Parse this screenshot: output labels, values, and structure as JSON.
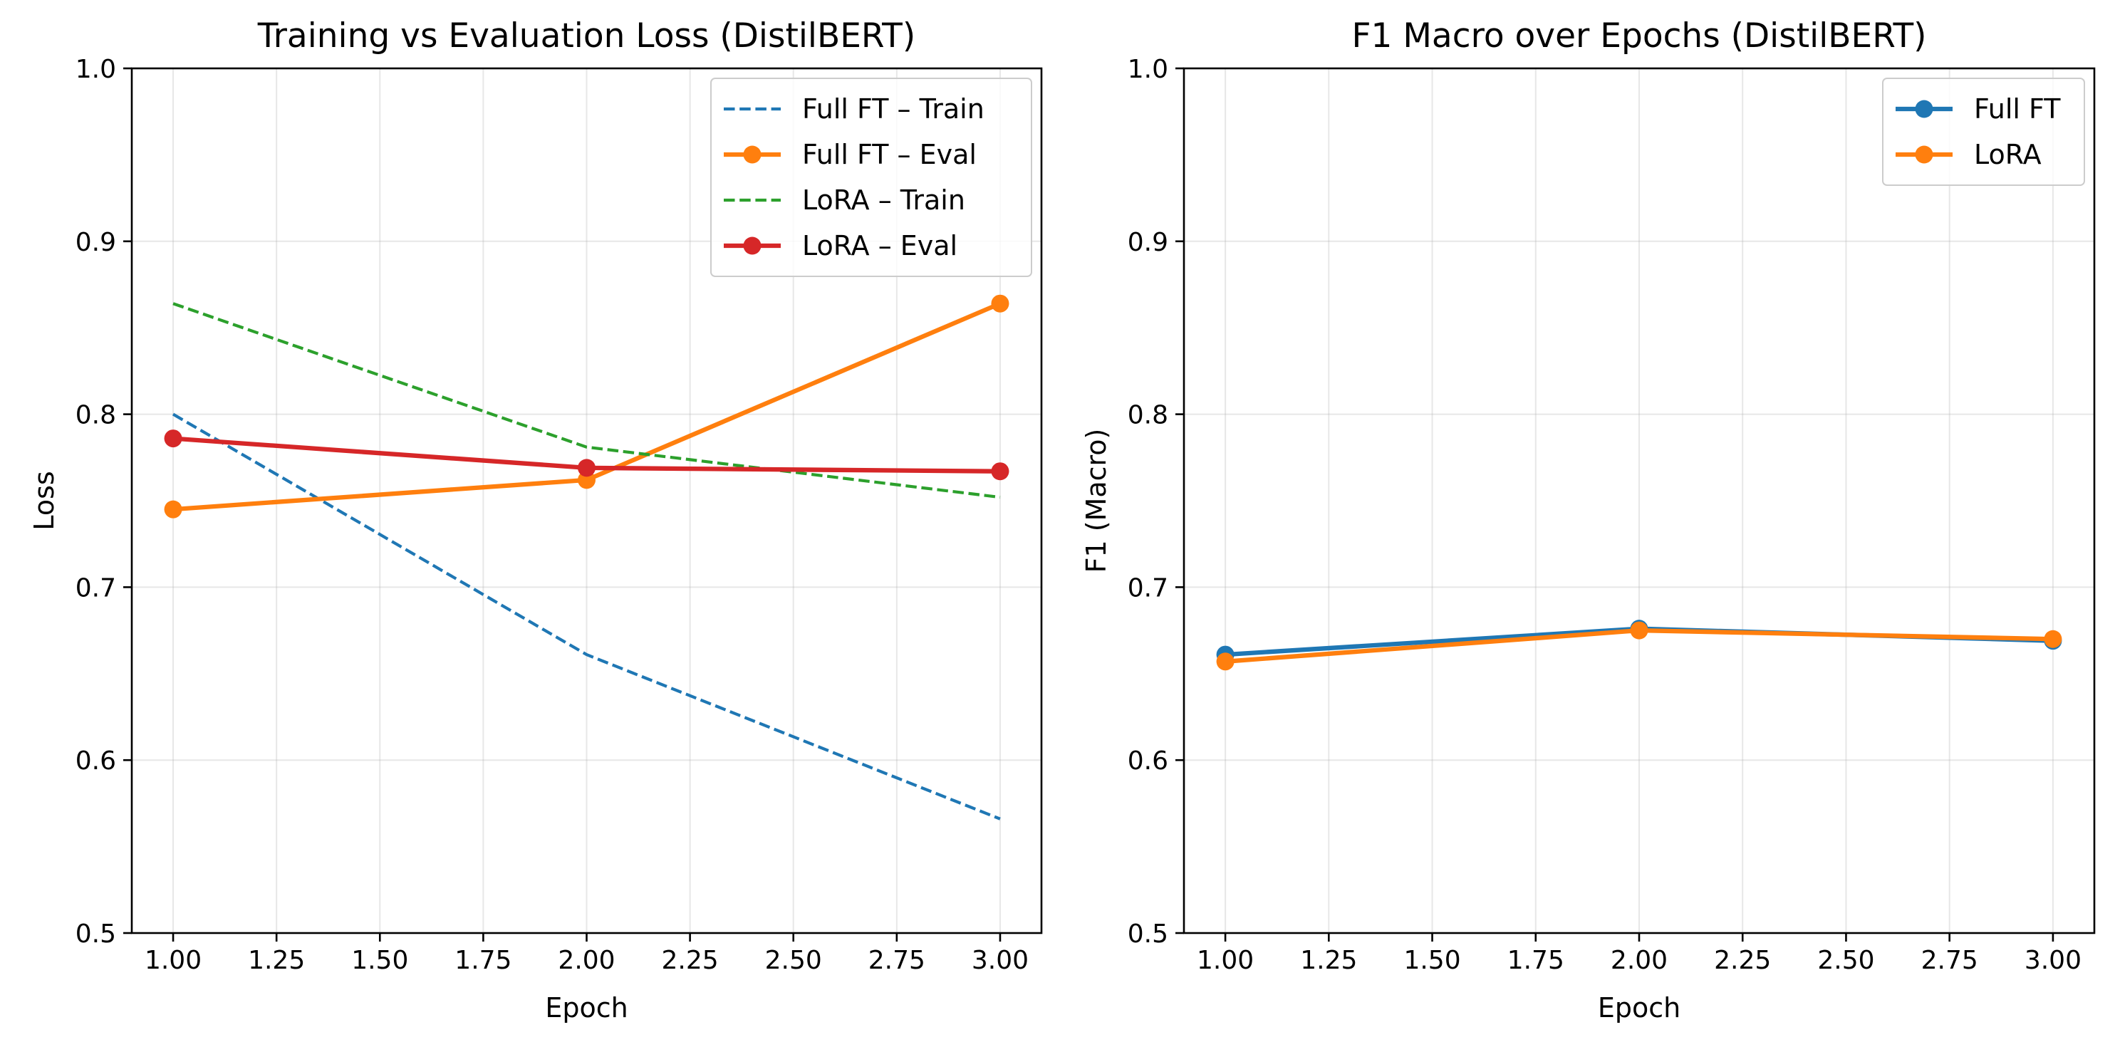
{
  "chart_data": [
    {
      "type": "line",
      "title": "Training vs Evaluation Loss (DistilBERT)",
      "xlabel": "Epoch",
      "ylabel": "Loss",
      "xlim": [
        0.9,
        3.1
      ],
      "ylim": [
        0.5,
        1.0
      ],
      "xticks": [
        1.0,
        1.25,
        1.5,
        1.75,
        2.0,
        2.25,
        2.5,
        2.75,
        3.0
      ],
      "xtick_labels": [
        "1.00",
        "1.25",
        "1.50",
        "1.75",
        "2.00",
        "2.25",
        "2.50",
        "2.75",
        "3.00"
      ],
      "yticks": [
        0.5,
        0.6,
        0.7,
        0.8,
        0.9,
        1.0
      ],
      "ytick_labels": [
        "0.5",
        "0.6",
        "0.7",
        "0.8",
        "0.9",
        "1.0"
      ],
      "grid": true,
      "legend_position": "top-right",
      "x": [
        1,
        2,
        3
      ],
      "series": [
        {
          "name": "Full FT – Train",
          "values": [
            0.8,
            0.661,
            0.566
          ],
          "color": "#1f77b4",
          "style": "dashed",
          "marker": false
        },
        {
          "name": "Full FT – Eval",
          "values": [
            0.745,
            0.762,
            0.864
          ],
          "color": "#ff7f0e",
          "style": "solid",
          "marker": true
        },
        {
          "name": "LoRA – Train",
          "values": [
            0.864,
            0.781,
            0.752
          ],
          "color": "#2ca02c",
          "style": "dashed",
          "marker": false
        },
        {
          "name": "LoRA – Eval",
          "values": [
            0.786,
            0.769,
            0.767
          ],
          "color": "#d62728",
          "style": "solid",
          "marker": true
        }
      ]
    },
    {
      "type": "line",
      "title": "F1 Macro over Epochs (DistilBERT)",
      "xlabel": "Epoch",
      "ylabel": "F1 (Macro)",
      "xlim": [
        0.9,
        3.1
      ],
      "ylim": [
        0.5,
        1.0
      ],
      "xticks": [
        1.0,
        1.25,
        1.5,
        1.75,
        2.0,
        2.25,
        2.5,
        2.75,
        3.0
      ],
      "xtick_labels": [
        "1.00",
        "1.25",
        "1.50",
        "1.75",
        "2.00",
        "2.25",
        "2.50",
        "2.75",
        "3.00"
      ],
      "yticks": [
        0.5,
        0.6,
        0.7,
        0.8,
        0.9,
        1.0
      ],
      "ytick_labels": [
        "0.5",
        "0.6",
        "0.7",
        "0.8",
        "0.9",
        "1.0"
      ],
      "grid": true,
      "legend_position": "top-right",
      "x": [
        1,
        2,
        3
      ],
      "series": [
        {
          "name": "Full FT",
          "values": [
            0.661,
            0.676,
            0.669
          ],
          "color": "#1f77b4",
          "style": "solid",
          "marker": true
        },
        {
          "name": "LoRA",
          "values": [
            0.657,
            0.675,
            0.67
          ],
          "color": "#ff7f0e",
          "style": "solid",
          "marker": true
        }
      ]
    }
  ]
}
